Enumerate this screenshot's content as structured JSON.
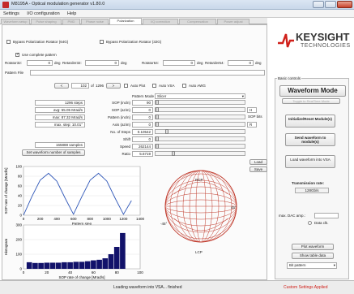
{
  "window": {
    "title": "M8195A - Optical modulation generator v1.80.0"
  },
  "menu": [
    "Settings",
    "I/O configuration",
    "Help"
  ],
  "tabs": [
    "Waveform setup",
    "Pulse shaping",
    "PMD",
    "Phase noise",
    "Polarization",
    "I/Q correction",
    "Compensation",
    "Power adjust"
  ],
  "bypass": {
    "rot1": "Bypass Polarization Rotator (64G)",
    "rot2": "Bypass Polarization Rotator (32G)",
    "use_complete": "Use complete pattern"
  },
  "rotators": [
    {
      "label": "Rotator32:",
      "value": "0",
      "unit": "deg"
    },
    {
      "label": "Retarder32:",
      "value": "0",
      "unit": "deg"
    },
    {
      "label": "Rotator64:",
      "value": "0",
      "unit": "deg"
    },
    {
      "label": "Retarder64:",
      "value": "0",
      "unit": "deg"
    }
  ],
  "pattern_file": {
    "label": "Pattern File"
  },
  "nav": {
    "prev": "<",
    "current": "102",
    "of": "of",
    "total": "1296",
    "next": ">"
  },
  "toggles": {
    "auto_plot": "Auto Plot",
    "auto_vsa": "Auto VSA",
    "auto_awg": "Auto AWG"
  },
  "stats": [
    "1296 steps",
    "avg: 55.05 Mrad/s",
    "max: 87.32 Mrad/s",
    "max. step: 10.01°",
    "165888 samples"
  ],
  "set_samples": "Set waveform number of samples",
  "params": {
    "mode_label": "Pattern Mode",
    "mode": "Slicer",
    "rows": [
      {
        "label": "SOP (incln)",
        "value": "90"
      },
      {
        "label": "SOP (azim)",
        "value": "0"
      },
      {
        "label": "Pattern (incln)",
        "value": "0"
      },
      {
        "label": "Axis (azim)",
        "value": "0"
      },
      {
        "label": "No. of Steps",
        "value": "0.10542"
      },
      {
        "label": "Shift",
        "value": "0"
      },
      {
        "label": "Speed",
        "value": "262144"
      },
      {
        "label": "Ratio",
        "value": "5.6719"
      }
    ],
    "sop_bits_label": "SOP bits",
    "sop_bits_h": "H",
    "sop_bits_r": "R"
  },
  "load_label": "Load",
  "save_label": "Save",
  "sphere": {
    "rcp": "RCP",
    "lcp": "LCP",
    "p45": "45°",
    "m45": "-45°"
  },
  "chart_data": [
    {
      "type": "line",
      "title": "",
      "xlabel": "Pattern step",
      "ylabel": "SOP rate of change [Mrad/s]",
      "xlim": [
        0,
        1400
      ],
      "ylim": [
        0,
        100
      ],
      "xticks": [
        "0",
        "200",
        "400",
        "600",
        "800",
        "1000",
        "1200",
        "1400"
      ],
      "yticks": [
        "0",
        "20",
        "40",
        "60",
        "80",
        "100"
      ],
      "x": [
        0,
        100,
        200,
        300,
        400,
        500,
        600,
        700,
        800,
        900,
        1000,
        1100,
        1200,
        1296
      ],
      "y": [
        0,
        38,
        72,
        86,
        70,
        35,
        2,
        38,
        72,
        86,
        70,
        35,
        2,
        30
      ]
    },
    {
      "type": "bar",
      "title": "",
      "xlabel": "SOP rate of change [Mrad/s]",
      "ylabel": "Histogram",
      "xlim": [
        0,
        100
      ],
      "ylim": [
        0,
        300
      ],
      "xticks": [
        "0",
        "20",
        "40",
        "60",
        "80",
        "100"
      ],
      "yticks": [
        "0",
        "100",
        "200",
        "300"
      ],
      "x": [
        5,
        10,
        15,
        20,
        25,
        30,
        35,
        40,
        45,
        50,
        55,
        60,
        65,
        70,
        75,
        80,
        85
      ],
      "values": [
        45,
        40,
        40,
        42,
        42,
        42,
        45,
        45,
        48,
        48,
        52,
        58,
        62,
        72,
        100,
        150,
        245
      ]
    }
  ],
  "brand": {
    "name": "KEYSIGHT",
    "sub": "TECHNOLOGIES"
  },
  "basic": {
    "group": "Basic controls",
    "mode": "Waveform Mode",
    "toggle": "Toggle to RealTime Mode",
    "init": "Initialize/Reset Module(s)",
    "send": "Send waveform to module(s)",
    "load_vsa": "Load waveform into VSA",
    "rate_label": "Transmission rate:",
    "rate": "128Gb/s",
    "dac": "max. DAC amp.:",
    "data_clk": "Data clk.",
    "plot": "Plot waveform",
    "show_table": "Show table data",
    "pattern_sel": "Bit pattern"
  },
  "status": {
    "text": "Loading waveform into VSA... finished",
    "custom": "Custom Settings Applied"
  },
  "colors": {
    "curve": "#2f57b8",
    "hist": "#12126a",
    "sphere": "#c0392b",
    "custom": "#d0201a"
  }
}
